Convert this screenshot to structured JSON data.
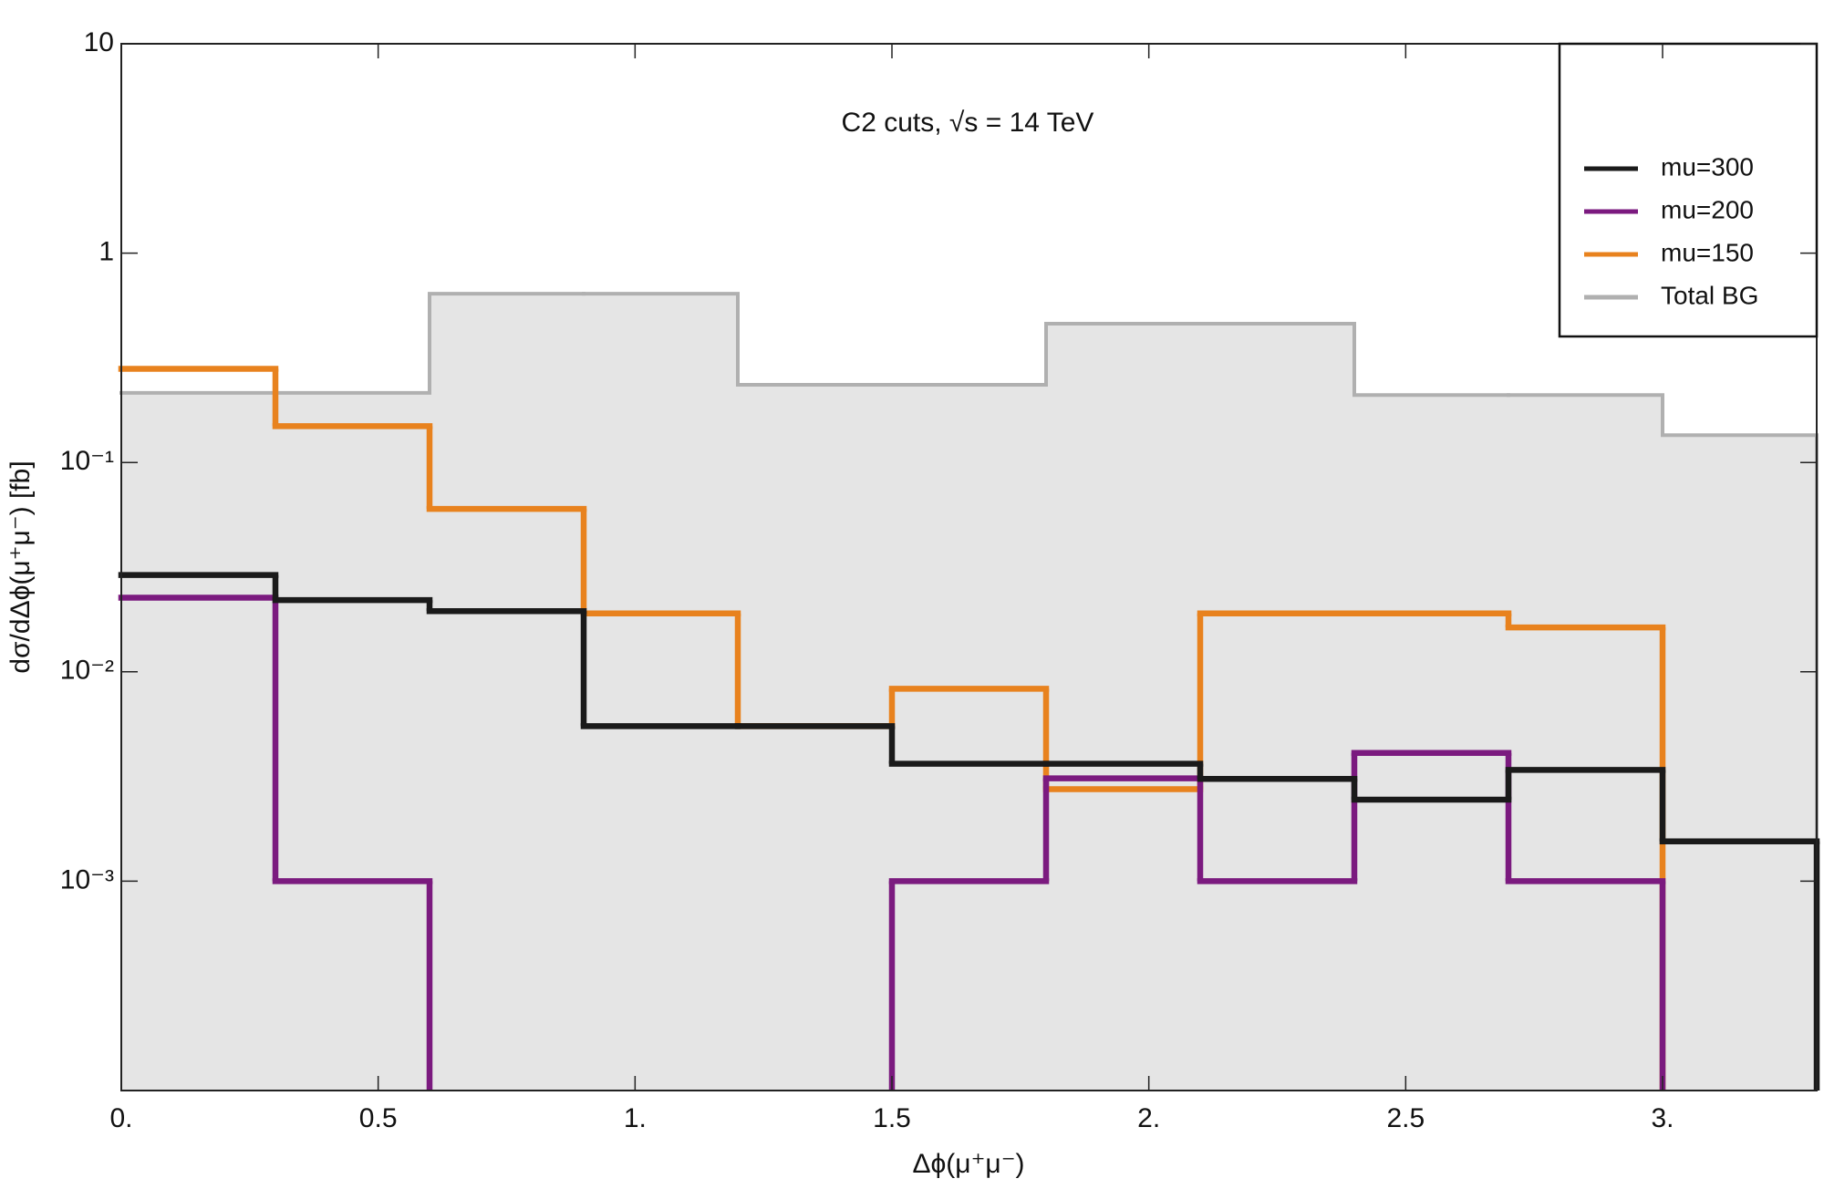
{
  "chart_data": {
    "type": "histogram",
    "annotation": "C2 cuts, √s = 14 TeV",
    "x_label": "Δϕ(μ⁺μ⁻)",
    "y_label": "dσ/dΔϕ(μ⁺μ⁻) [fb]",
    "bins": [
      0,
      0.3,
      0.6,
      0.9,
      1.2,
      1.5,
      1.8,
      2.1,
      2.4,
      2.7,
      3.0,
      3.3
    ],
    "series": [
      {
        "name": "mu=300",
        "color": "#1a1a1a",
        "values": [
          0.029,
          0.022,
          0.0195,
          0.0055,
          0.0055,
          0.00364,
          0.00364,
          0.00308,
          0.00245,
          0.0034,
          0.00155
        ]
      },
      {
        "name": "mu=200",
        "color": "#7b1a7f",
        "values": [
          0.0226,
          0.001,
          null,
          null,
          null,
          0.001,
          0.0031,
          0.001,
          0.0041,
          0.001,
          null
        ]
      },
      {
        "name": "mu=150",
        "color": "#e8821e",
        "values": [
          0.28,
          0.149,
          0.06,
          0.019,
          0.0055,
          0.0083,
          0.00275,
          0.019,
          0.019,
          0.0163,
          null
        ]
      },
      {
        "name": "Total BG",
        "color": "#b0b0b0",
        "fill": "#e5e5e5",
        "values": [
          0.215,
          0.215,
          0.64,
          0.64,
          0.235,
          0.235,
          0.46,
          0.46,
          0.21,
          0.21,
          0.135
        ]
      }
    ],
    "xlim": [
      0,
      3.3
    ],
    "xticks": [
      {
        "value": 0,
        "label": "0."
      },
      0.5,
      {
        "value": 1,
        "label": "1."
      },
      1.5,
      {
        "value": 2,
        "label": "2."
      },
      2.5,
      {
        "value": 3,
        "label": "3."
      }
    ],
    "ylim": [
      0.0001,
      10
    ],
    "yticks": [
      {
        "value": 0.001,
        "label": "10⁻³"
      },
      {
        "value": 0.01,
        "label": "10⁻²"
      },
      {
        "value": 0.1,
        "label": "10⁻¹"
      },
      1,
      10
    ],
    "log_y": true,
    "legend": "upper right"
  }
}
